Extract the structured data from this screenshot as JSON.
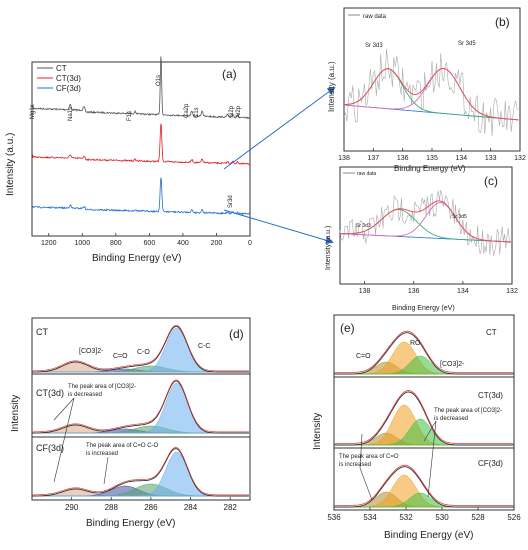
{
  "chart_data": [
    {
      "panel": "(a)",
      "type": "line",
      "xlabel": "Binding Energy (eV)",
      "ylabel": "Intensity (a.u.)",
      "xlim": [
        1300,
        0
      ],
      "x_ticks": [
        "1200",
        "1000",
        "800",
        "600",
        "400",
        "200",
        "0"
      ],
      "legend": [
        "CT",
        "CT(3d)",
        "CF(3d)"
      ],
      "series": [
        {
          "name": "CT",
          "color": "#555555"
        },
        {
          "name": "CT(3d)",
          "color": "#e02020"
        },
        {
          "name": "CF(3d)",
          "color": "#1f6fd0"
        }
      ],
      "peaks": [
        {
          "label": "Mg1s",
          "x": 1304
        },
        {
          "label": "Na1s",
          "x": 1072
        },
        {
          "label": "F1s",
          "x": 685
        },
        {
          "label": "O1s",
          "x": 531
        },
        {
          "label": "Ca2p",
          "x": 347
        },
        {
          "label": "C1s",
          "x": 285
        },
        {
          "label": "Si2p",
          "x": 102
        },
        {
          "label": "Al2p",
          "x": 74
        },
        {
          "label": "Sr3d",
          "x": 134
        }
      ]
    },
    {
      "panel": "(b)",
      "type": "line",
      "xlabel": "Binding Energy (eV)",
      "ylabel": "Intensity (a.u.)",
      "xlim": [
        138,
        132
      ],
      "x_ticks": [
        "138",
        "137",
        "136",
        "135",
        "134",
        "133",
        "132"
      ],
      "legend": [
        "raw data"
      ],
      "annotations": [
        "Sr 3d3",
        "Sr 3d5"
      ],
      "peaks": [
        {
          "label": "Sr 3d3",
          "x": 136.5
        },
        {
          "label": "Sr 3d5",
          "x": 134.6
        }
      ]
    },
    {
      "panel": "(c)",
      "type": "line",
      "xlabel": "Binding Energy (eV)",
      "ylabel": "Intensity (a.u.)",
      "xlim": [
        139,
        132
      ],
      "x_ticks": [
        "138",
        "136",
        "134",
        "132"
      ],
      "legend": [
        "raw data"
      ],
      "annotations": [
        "Sr 3d3",
        "Sr 3d5"
      ],
      "peaks": [
        {
          "label": "Sr 3d3",
          "x": 136.6
        },
        {
          "label": "Sr 3d5",
          "x": 134.9
        }
      ]
    },
    {
      "panel": "(d)",
      "type": "area",
      "xlabel": "Binding Energy (eV)",
      "ylabel": "Intensity",
      "xlim": [
        292,
        281
      ],
      "x_ticks": [
        "290",
        "288",
        "286",
        "284",
        "282"
      ],
      "samples": [
        "CT",
        "CT(3d)",
        "CF(3d)"
      ],
      "components": [
        {
          "label": "[CO3]2-",
          "x": 289.8,
          "color": "#d9a88a"
        },
        {
          "label": "C=O",
          "x": 287.3,
          "color": "#4050a0"
        },
        {
          "label": "C-O",
          "x": 286.0,
          "color": "#55a070"
        },
        {
          "label": "C-C",
          "x": 284.7,
          "color": "#6aaef0"
        }
      ],
      "annotations": [
        "The peak area of [CO3]2- is decreased",
        "The peak area of C=O  C-O is increased"
      ]
    },
    {
      "panel": "(e)",
      "type": "area",
      "xlabel": "Binding Energy (eV)",
      "ylabel": "Intensity",
      "xlim": [
        536,
        526
      ],
      "x_ticks": [
        "536",
        "534",
        "532",
        "530",
        "528",
        "526"
      ],
      "samples": [
        "CT",
        "CT(3d)",
        "CF(3d)"
      ],
      "components": [
        {
          "label": "C=O",
          "x": 533.1,
          "color": "#b09030"
        },
        {
          "label": "RO",
          "x": 532.1,
          "color": "#f0a020"
        },
        {
          "label": "[CO3]2-",
          "x": 531.2,
          "color": "#40c040"
        }
      ],
      "annotations": [
        "The peak area of [CO3]2- is decreased",
        "The peak area of C=O is increased"
      ]
    }
  ],
  "labels": {
    "a_panel": "(a)",
    "a_xlabel": "Binding Energy (eV)",
    "a_ylabel": "Intensity (a.u.)",
    "a_leg_ct": "CT",
    "a_leg_ct3d": "CT(3d)",
    "a_leg_cf3d": "CF(3d)",
    "a_mg": "Mg1s",
    "a_na": "Na1s",
    "a_f": "F1s",
    "a_o": "O1s",
    "a_ca": "Ca2p",
    "a_c": "C1s",
    "a_si": "Si2p",
    "a_al": "Al2p",
    "a_sr": "Sr3d",
    "b_panel": "(b)",
    "b_legend": "raw data",
    "b_sr3d3": "Sr 3d3",
    "b_sr3d5": "Sr 3d5",
    "b_xlabel": "Binding Energy (eV)",
    "b_ylabel": "Intensity (a.u.)",
    "c_panel": "(c)",
    "c_legend": "raw data",
    "c_sr3d3": "Sr 3d3",
    "c_sr3d5": "Sr 3d5",
    "c_xlabel": "Binding Energy (eV)",
    "c_ylabel": "Intensity (a.u.)",
    "d_panel": "(d)",
    "d_ct": "CT",
    "d_ct3d": "CT(3d)",
    "d_cf3d": "CF(3d)",
    "d_co3": "[CO3]2-",
    "d_ceqo": "C=O",
    "d_co": "C-O",
    "d_cc": "C-C",
    "d_note1a": "The peak area of [CO3]2-",
    "d_note1b": "is decreased",
    "d_note2a": "The peak area of C=O  C-O",
    "d_note2b": "is increased",
    "d_xlabel": "Binding Energy (eV)",
    "d_ylabel": "Intensity",
    "e_panel": "(e)",
    "e_ct": "CT",
    "e_ct3d": "CT(3d)",
    "e_cf3d": "CF(3d)",
    "e_ceqo": "C=O",
    "e_ro": "RO",
    "e_co3": "[CO3]2-",
    "e_note1a": "The peak area of [CO3]2-",
    "e_note1b": "is decreased",
    "e_note2a": "The peak area of C=O",
    "e_note2b": "is increased",
    "e_xlabel": "Binding Energy (eV)",
    "e_ylabel": "Intensity"
  }
}
